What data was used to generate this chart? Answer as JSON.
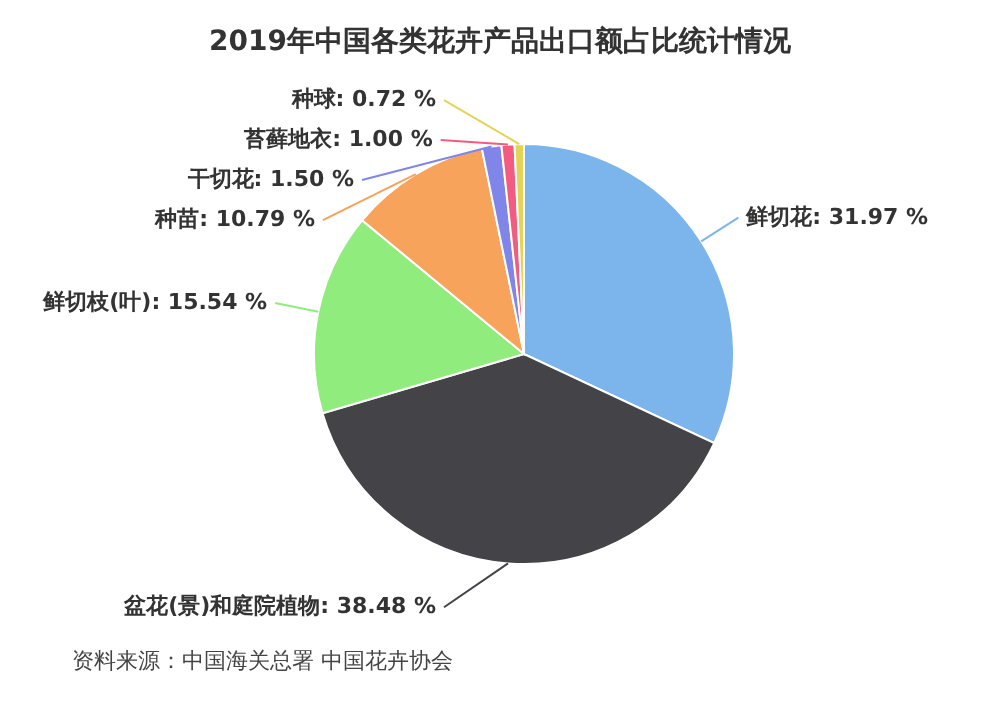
{
  "chart_data": {
    "type": "pie",
    "title": "2019年中国各类花卉产品出口额占比统计情况",
    "categories": [
      "鲜切花",
      "盆花(景)和庭院植物",
      "鲜切枝(叶)",
      "种苗",
      "干切花",
      "苔藓地衣",
      "种球"
    ],
    "values": [
      31.97,
      38.48,
      15.54,
      10.79,
      1.5,
      1.0,
      0.72
    ],
    "value_labels": [
      "31.97 %",
      "38.48 %",
      "15.54 %",
      "10.79 %",
      "1.50 %",
      "1.00 %",
      "0.72 %"
    ],
    "colors": [
      "#7cb5ec",
      "#434348",
      "#90ed7d",
      "#f7a35c",
      "#8085e9",
      "#f15c80",
      "#e4d354"
    ],
    "annotations": [
      "资料来源：中国海关总署 中国花卉协会"
    ]
  }
}
